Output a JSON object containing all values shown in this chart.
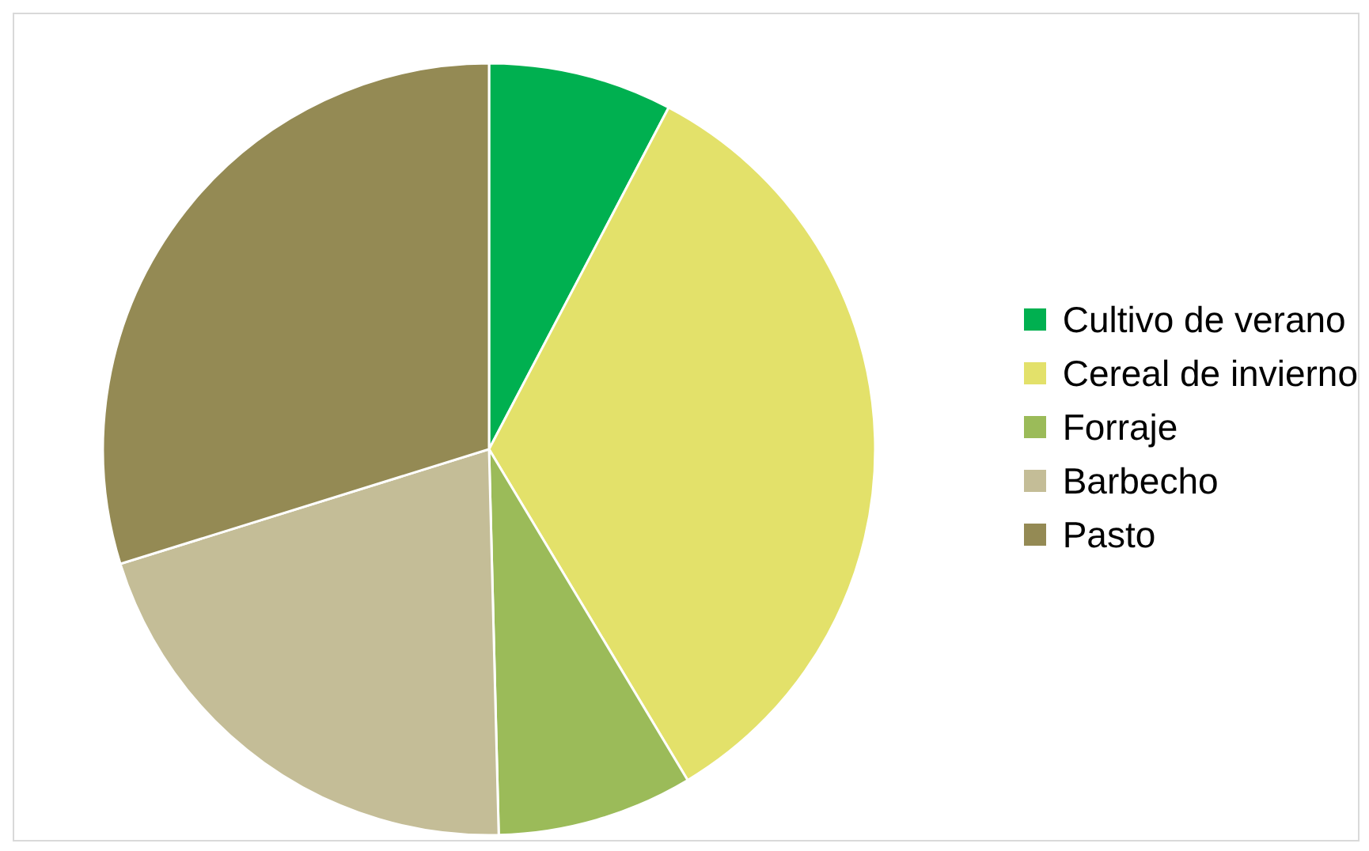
{
  "chart_data": {
    "type": "pie",
    "categories": [
      "Cultivo de verano",
      "Cereal de invierno",
      "Forraje",
      "Barbecho",
      "Pasto"
    ],
    "values": [
      7.7,
      33.7,
      8.2,
      20.6,
      29.8
    ],
    "colors": [
      "#00b050",
      "#e3e16a",
      "#9bbb59",
      "#c4bd97",
      "#948a54"
    ],
    "legend": "right"
  }
}
